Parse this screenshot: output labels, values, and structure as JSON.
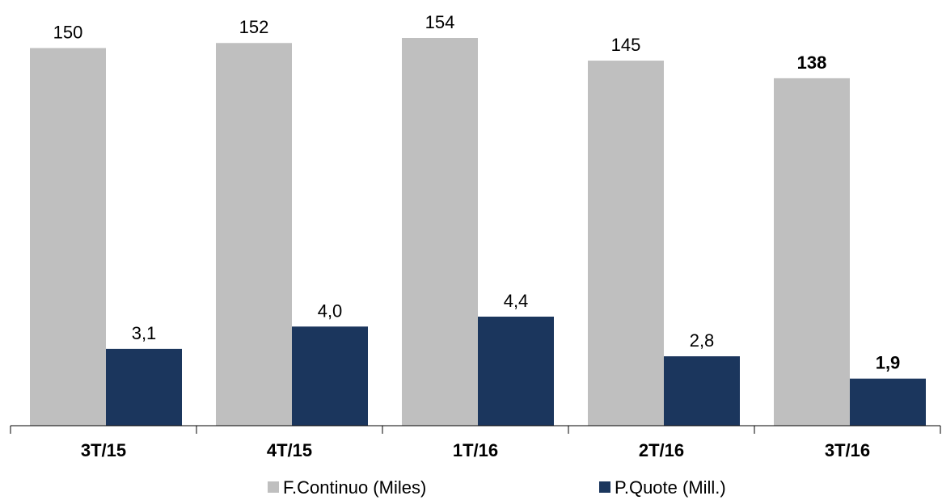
{
  "chart_data": {
    "type": "bar",
    "categories": [
      "3T/15",
      "4T/15",
      "1T/16",
      "2T/16",
      "3T/16"
    ],
    "series": [
      {
        "name": "F.Continuo (Miles)",
        "values": [
          150,
          152,
          154,
          145,
          138
        ],
        "labels": [
          "150",
          "152",
          "154",
          "145",
          "138"
        ],
        "color": "#bfbfbf"
      },
      {
        "name": "P.Quote (Mill.)",
        "values": [
          3.1,
          4.0,
          4.4,
          2.8,
          1.9
        ],
        "labels": [
          "3,1",
          "4,0",
          "4,4",
          "2,8",
          "1,9"
        ],
        "color": "#1b365d"
      }
    ],
    "title": "",
    "xlabel": "",
    "ylabel": "",
    "highlight_last_category": true,
    "grid": false,
    "legend": "bottom-center"
  }
}
